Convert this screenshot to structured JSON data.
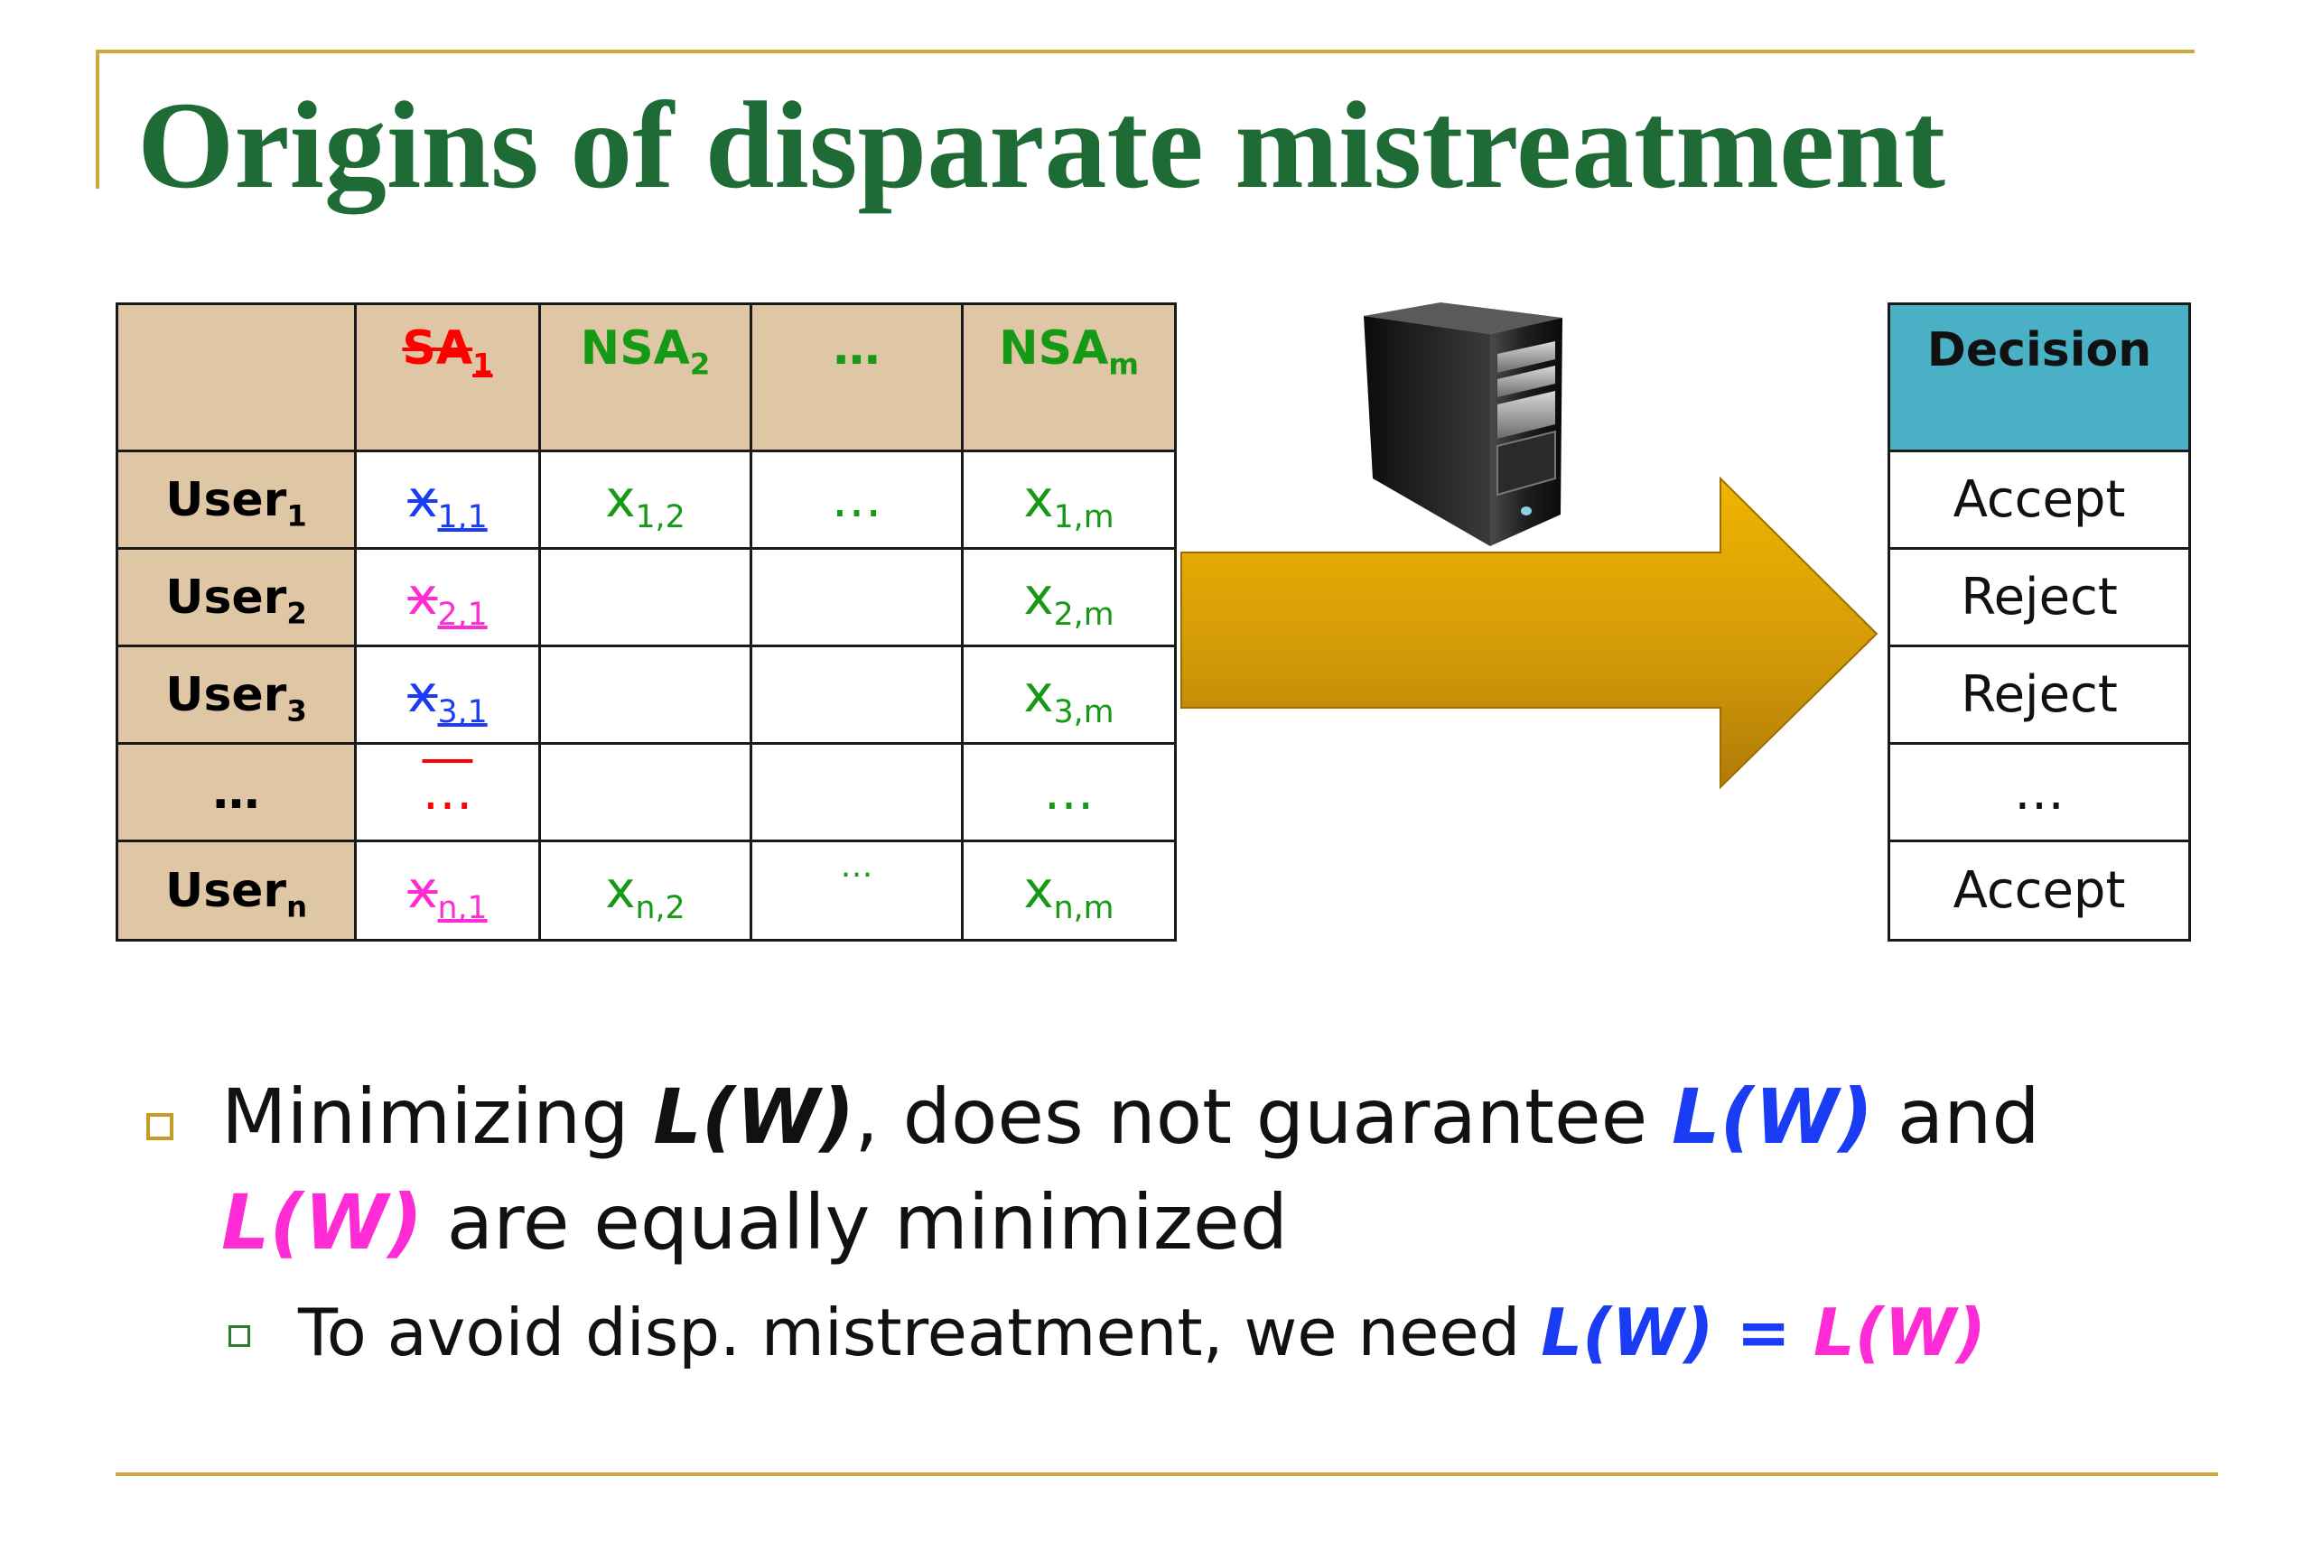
{
  "slide": {
    "title": "Origins of disparate mistreatment"
  },
  "data_table": {
    "headers": {
      "corner": "",
      "col1": {
        "base": "SA",
        "sub": "1"
      },
      "col2": {
        "base": "NSA",
        "sub": "2"
      },
      "col3": "…",
      "col4": {
        "base": "NSA",
        "sub": "m"
      }
    },
    "rows": [
      {
        "user": {
          "base": "User",
          "sub": "1"
        },
        "c1": {
          "base": "x",
          "sub": "1,1"
        },
        "c2": {
          "base": "x",
          "sub": "1,2"
        },
        "c3": "…",
        "c4": {
          "base": "x",
          "sub": "1,m"
        }
      },
      {
        "user": {
          "base": "User",
          "sub": "2"
        },
        "c1": {
          "base": "x",
          "sub": "2,1"
        },
        "c2": {
          "base": "",
          "sub": ""
        },
        "c3": "",
        "c4": {
          "base": "x",
          "sub": "2,m"
        }
      },
      {
        "user": {
          "base": "User",
          "sub": "3"
        },
        "c1": {
          "base": "x",
          "sub": "3,1"
        },
        "c2": {
          "base": "",
          "sub": ""
        },
        "c3": "",
        "c4": {
          "base": "x",
          "sub": "3,m"
        }
      },
      {
        "user": {
          "base": "…",
          "sub": ""
        },
        "c1": {
          "base": "…",
          "sub": ""
        },
        "c2": {
          "base": "",
          "sub": ""
        },
        "c3": "",
        "c4": {
          "base": "…",
          "sub": ""
        }
      },
      {
        "user": {
          "base": "User",
          "sub": "n"
        },
        "c1": {
          "base": "x",
          "sub": "n,1"
        },
        "c2": {
          "base": "x",
          "sub": "n,2"
        },
        "c3": "…",
        "c4": {
          "base": "x",
          "sub": "n,m"
        }
      }
    ]
  },
  "decision_table": {
    "header": "Decision",
    "values": [
      "Accept",
      "Reject",
      "Reject",
      "…",
      "Accept"
    ]
  },
  "bullets": {
    "main": {
      "part1": "Minimizing ",
      "lw1": "L(W)",
      "part2": ", does not guarantee ",
      "lw2": "L(W)",
      "part3": " and",
      "lw3": "L(W)",
      "part4": " are equally minimized"
    },
    "sub": {
      "part1": "To avoid disp. mistreatment, we need ",
      "lw1": "L(W)",
      "eq": " = ",
      "lw2": "L(W)"
    }
  },
  "colors": {
    "title": "#1e6b36",
    "gold_rule": "#cfa73a",
    "table_header": "#dfc6a4",
    "decision_header": "#4ab0c6",
    "arrow": "#d9a20a",
    "blue": "#1a3cf5",
    "pink": "#ff2bd5",
    "green": "#169a16",
    "red": "#ff0000"
  },
  "icons": {
    "server": "server-tower-icon",
    "arrow": "right-arrow-icon"
  }
}
